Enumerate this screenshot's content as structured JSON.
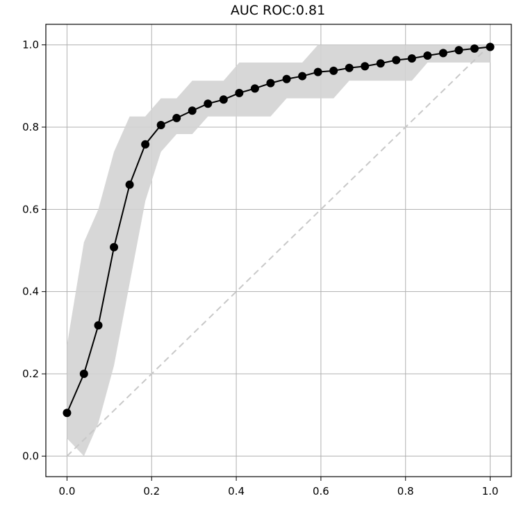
{
  "chart_data": {
    "type": "line",
    "title": "AUC ROC:0.81",
    "xlabel": "",
    "ylabel": "",
    "xlim": [
      -0.05,
      1.05
    ],
    "ylim": [
      -0.05,
      1.05
    ],
    "grid": true,
    "x_ticks": [
      "0.0",
      "0.2",
      "0.4",
      "0.6",
      "0.8",
      "1.0"
    ],
    "y_ticks": [
      "0.0",
      "0.2",
      "0.4",
      "0.6",
      "0.8",
      "1.0"
    ],
    "x_tick_values": [
      0.0,
      0.2,
      0.4,
      0.6,
      0.8,
      1.0
    ],
    "y_tick_values": [
      0.0,
      0.2,
      0.4,
      0.6,
      0.8,
      1.0
    ],
    "colors": {
      "line": "#000000",
      "band": "#d3d3d3",
      "diagonal": "#c8c8c8",
      "grid": "#b0b0b0",
      "axes": "#000000"
    },
    "series": [
      {
        "x": [
          0.0,
          0.04,
          0.074,
          0.111,
          0.148,
          0.185,
          0.222,
          0.259,
          0.296,
          0.333,
          0.37,
          0.407,
          0.444,
          0.481,
          0.519,
          0.556,
          0.593,
          0.63,
          0.667,
          0.704,
          0.741,
          0.778,
          0.815,
          0.852,
          0.889,
          0.926,
          0.963,
          1.0
        ],
        "values": [
          0.105,
          0.2,
          0.318,
          0.508,
          0.66,
          0.758,
          0.805,
          0.822,
          0.84,
          0.857,
          0.867,
          0.883,
          0.894,
          0.907,
          0.917,
          0.924,
          0.934,
          0.937,
          0.944,
          0.948,
          0.955,
          0.963,
          0.967,
          0.974,
          0.98,
          0.987,
          0.991,
          0.995
        ]
      }
    ],
    "band": {
      "upper": [
        [
          0.0,
          0.27
        ],
        [
          0.04,
          0.52
        ],
        [
          0.074,
          0.6
        ],
        [
          0.111,
          0.74
        ],
        [
          0.148,
          0.826
        ],
        [
          0.185,
          0.826
        ],
        [
          0.222,
          0.87
        ],
        [
          0.259,
          0.87
        ],
        [
          0.296,
          0.913
        ],
        [
          0.333,
          0.913
        ],
        [
          0.37,
          0.913
        ],
        [
          0.407,
          0.957
        ],
        [
          0.444,
          0.957
        ],
        [
          0.481,
          0.957
        ],
        [
          0.519,
          0.957
        ],
        [
          0.556,
          0.957
        ],
        [
          0.593,
          1.0
        ],
        [
          0.63,
          1.0
        ],
        [
          1.0,
          1.0
        ]
      ],
      "lower": [
        [
          0.0,
          0.043
        ],
        [
          0.04,
          0.0
        ],
        [
          0.074,
          0.08
        ],
        [
          0.111,
          0.22
        ],
        [
          0.148,
          0.42
        ],
        [
          0.185,
          0.62
        ],
        [
          0.222,
          0.74
        ],
        [
          0.259,
          0.783
        ],
        [
          0.296,
          0.783
        ],
        [
          0.333,
          0.826
        ],
        [
          0.37,
          0.826
        ],
        [
          0.407,
          0.826
        ],
        [
          0.444,
          0.826
        ],
        [
          0.481,
          0.826
        ],
        [
          0.519,
          0.87
        ],
        [
          0.556,
          0.87
        ],
        [
          0.593,
          0.87
        ],
        [
          0.63,
          0.87
        ],
        [
          0.667,
          0.913
        ],
        [
          0.704,
          0.913
        ],
        [
          0.741,
          0.913
        ],
        [
          0.778,
          0.913
        ],
        [
          0.815,
          0.913
        ],
        [
          0.852,
          0.957
        ],
        [
          0.889,
          0.957
        ],
        [
          1.0,
          0.957
        ]
      ]
    },
    "diagonal": [
      [
        0.0,
        0.0
      ],
      [
        1.0,
        1.0
      ]
    ]
  }
}
